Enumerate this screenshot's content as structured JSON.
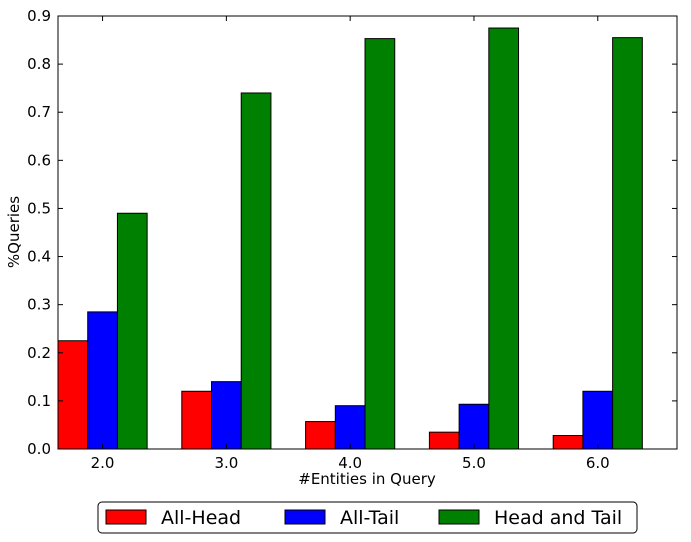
{
  "chart_data": {
    "type": "bar",
    "title": "",
    "xlabel": "#Entities in Query",
    "ylabel": "%Queries",
    "categories": [
      "2.0",
      "3.0",
      "4.0",
      "5.0",
      "6.0"
    ],
    "ylim": [
      0,
      0.9
    ],
    "yticks": [
      "0.0",
      "0.1",
      "0.2",
      "0.3",
      "0.4",
      "0.5",
      "0.6",
      "0.7",
      "0.8",
      "0.9"
    ],
    "grid": false,
    "legend_position": "bottom-center",
    "series": [
      {
        "name": "All-Head",
        "color": "#ff0000",
        "values": [
          0.225,
          0.12,
          0.057,
          0.035,
          0.028
        ]
      },
      {
        "name": "All-Tail",
        "color": "#0000ff",
        "values": [
          0.285,
          0.14,
          0.09,
          0.093,
          0.12
        ]
      },
      {
        "name": "Head and Tail",
        "color": "#008000",
        "values": [
          0.49,
          0.74,
          0.853,
          0.875,
          0.855
        ]
      }
    ]
  }
}
